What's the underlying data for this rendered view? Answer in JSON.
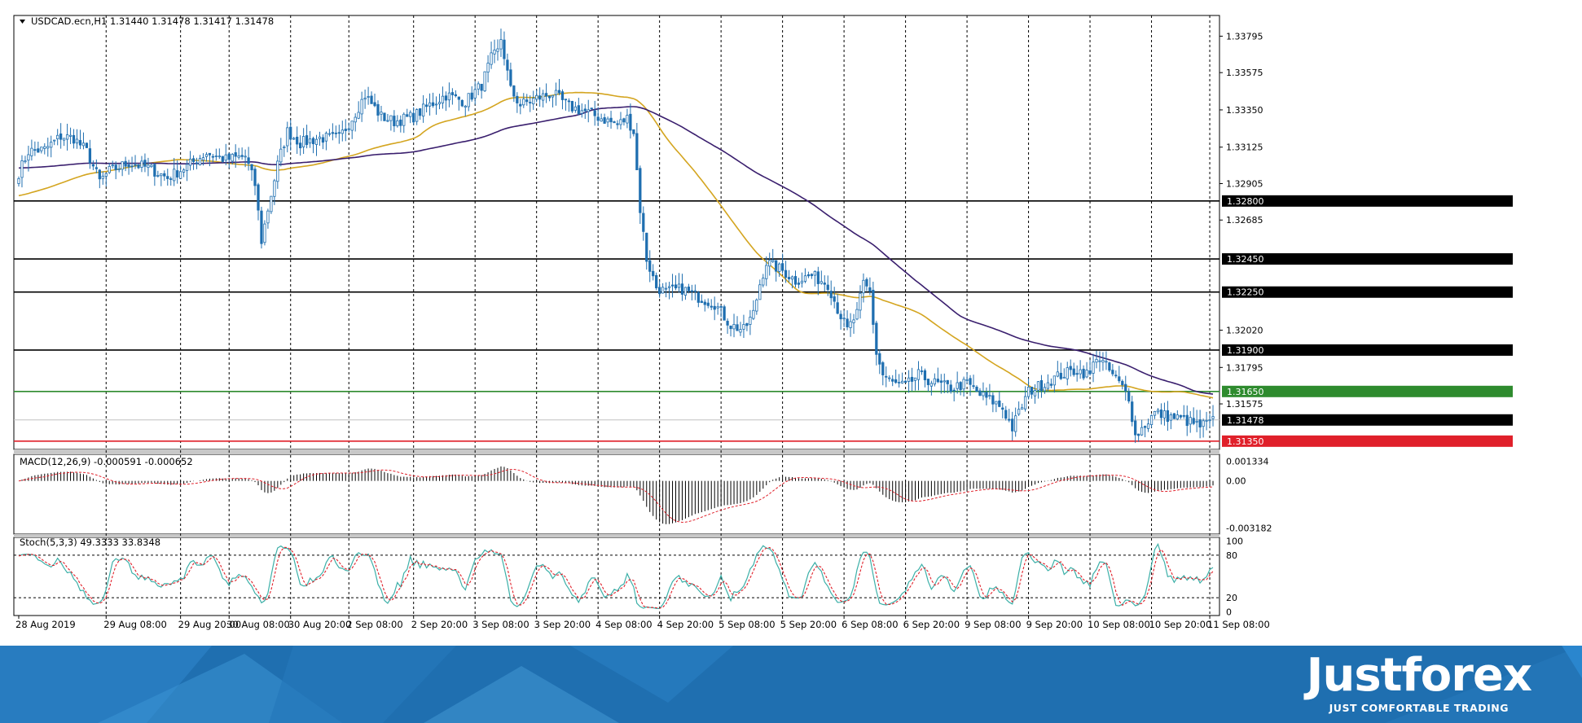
{
  "colors": {
    "bull": "#ffffff",
    "bear": "#1f6fb0",
    "candle_outline": "#1f6fb0",
    "ma_fast": "#d4a520",
    "ma_slow": "#3a1f6e",
    "level_line": "#000000",
    "support_green": "#2e8b2e",
    "support_red": "#e0202a",
    "macd_hist": "#000000",
    "macd_signal": "#e0202a",
    "stoch_main": "#3cb0a8",
    "stoch_signal": "#e0202a",
    "banner": "#1f6fb0"
  },
  "chart_data": [
    {
      "type": "candlestick",
      "header": "USDCAD.ecn,H1  1.31440 1.31478 1.31417 1.31478",
      "ylim": [
        1.313,
        1.3392
      ],
      "y_ticks": [
        "1.33795",
        "1.33575",
        "1.33350",
        "1.33125",
        "1.32905",
        "1.32685",
        "1.32020",
        "1.31795",
        "1.31575"
      ],
      "levels": [
        {
          "value": 1.328,
          "label": "1.32800",
          "kind": "resistance"
        },
        {
          "value": 1.3245,
          "label": "1.32450",
          "kind": "resistance"
        },
        {
          "value": 1.3225,
          "label": "1.32250",
          "kind": "resistance"
        },
        {
          "value": 1.319,
          "label": "1.31900",
          "kind": "resistance"
        },
        {
          "value": 1.3165,
          "label": "1.31650",
          "kind": "green"
        },
        {
          "value": 1.3135,
          "label": "1.31350",
          "kind": "red"
        }
      ],
      "current": {
        "value": 1.31478,
        "label": "1.31478"
      },
      "close_anchors": [
        [
          0,
          1.3297
        ],
        [
          3,
          1.331
        ],
        [
          8,
          1.3311
        ],
        [
          13,
          1.3319
        ],
        [
          17,
          1.3318
        ],
        [
          21,
          1.331
        ],
        [
          25,
          1.3292
        ],
        [
          28,
          1.3298
        ],
        [
          34,
          1.3303
        ],
        [
          40,
          1.33
        ],
        [
          46,
          1.3294
        ],
        [
          52,
          1.3301
        ],
        [
          58,
          1.3309
        ],
        [
          64,
          1.3305
        ],
        [
          70,
          1.3307
        ],
        [
          73,
          1.329
        ],
        [
          75,
          1.3256
        ],
        [
          77,
          1.3275
        ],
        [
          80,
          1.3302
        ],
        [
          83,
          1.3322
        ],
        [
          87,
          1.3315
        ],
        [
          93,
          1.3318
        ],
        [
          99,
          1.3318
        ],
        [
          103,
          1.333
        ],
        [
          107,
          1.3344
        ],
        [
          112,
          1.3331
        ],
        [
          116,
          1.3328
        ],
        [
          122,
          1.3331
        ],
        [
          127,
          1.3338
        ],
        [
          132,
          1.3344
        ],
        [
          138,
          1.334
        ],
        [
          143,
          1.335
        ],
        [
          146,
          1.3366
        ],
        [
          148,
          1.337
        ],
        [
          149,
          1.3378
        ],
        [
          152,
          1.3347
        ],
        [
          155,
          1.3338
        ],
        [
          160,
          1.3342
        ],
        [
          165,
          1.3345
        ],
        [
          170,
          1.3337
        ],
        [
          175,
          1.3334
        ],
        [
          180,
          1.333
        ],
        [
          185,
          1.3326
        ],
        [
          188,
          1.333
        ],
        [
          190,
          1.3322
        ],
        [
          192,
          1.3275
        ],
        [
          194,
          1.3245
        ],
        [
          197,
          1.3228
        ],
        [
          200,
          1.3225
        ],
        [
          205,
          1.3227
        ],
        [
          210,
          1.3222
        ],
        [
          215,
          1.3218
        ],
        [
          220,
          1.3205
        ],
        [
          224,
          1.3202
        ],
        [
          227,
          1.3212
        ],
        [
          229,
          1.323
        ],
        [
          231,
          1.3243
        ],
        [
          236,
          1.3238
        ],
        [
          240,
          1.3232
        ],
        [
          245,
          1.3235
        ],
        [
          250,
          1.323
        ],
        [
          253,
          1.3215
        ],
        [
          256,
          1.3202
        ],
        [
          259,
          1.3212
        ],
        [
          261,
          1.323
        ],
        [
          263,
          1.3225
        ],
        [
          265,
          1.3188
        ],
        [
          267,
          1.3175
        ],
        [
          270,
          1.317
        ],
        [
          274,
          1.3168
        ],
        [
          278,
          1.3175
        ],
        [
          283,
          1.317
        ],
        [
          288,
          1.3167
        ],
        [
          293,
          1.317
        ],
        [
          297,
          1.3163
        ],
        [
          301,
          1.3159
        ],
        [
          304,
          1.3155
        ],
        [
          307,
          1.3143
        ],
        [
          309,
          1.3152
        ],
        [
          312,
          1.3165
        ],
        [
          317,
          1.317
        ],
        [
          322,
          1.3175
        ],
        [
          327,
          1.3178
        ],
        [
          331,
          1.3175
        ],
        [
          333,
          1.3187
        ],
        [
          336,
          1.318
        ],
        [
          340,
          1.317
        ],
        [
          343,
          1.3162
        ],
        [
          345,
          1.3138
        ],
        [
          348,
          1.3145
        ],
        [
          351,
          1.3152
        ],
        [
          355,
          1.315
        ],
        [
          360,
          1.3148
        ],
        [
          365,
          1.3144
        ],
        [
          369,
          1.3147
        ]
      ]
    },
    {
      "type": "histogram",
      "header": "MACD(12,26,9) -0.000591 -0.000652",
      "ylim": [
        -0.0036,
        0.0018
      ],
      "y_ticks": [
        "0.001334",
        "0.00",
        "-0.003182"
      ]
    },
    {
      "type": "line",
      "header": "Stoch(5,3,3) 49.3333 33.8348",
      "ylim": [
        -5,
        105
      ],
      "y_ticks": [
        "100",
        "80",
        "20",
        "0"
      ],
      "levels": [
        80,
        20
      ]
    }
  ],
  "x_ticks": [
    {
      "i": 0,
      "label": "28 Aug 2019"
    },
    {
      "i": 27,
      "label": "29 Aug 08:00"
    },
    {
      "i": 50,
      "label": "29 Aug 20:00"
    },
    {
      "i": 65,
      "label": "30 Aug 08:00"
    },
    {
      "i": 84,
      "label": "30 Aug 20:00"
    },
    {
      "i": 102,
      "label": "2 Sep 08:00"
    },
    {
      "i": 122,
      "label": "2 Sep 20:00"
    },
    {
      "i": 141,
      "label": "3 Sep 08:00"
    },
    {
      "i": 160,
      "label": "3 Sep 20:00"
    },
    {
      "i": 179,
      "label": "4 Sep 08:00"
    },
    {
      "i": 198,
      "label": "4 Sep 20:00"
    },
    {
      "i": 217,
      "label": "5 Sep 08:00"
    },
    {
      "i": 236,
      "label": "5 Sep 20:00"
    },
    {
      "i": 255,
      "label": "6 Sep 08:00"
    },
    {
      "i": 274,
      "label": "6 Sep 20:00"
    },
    {
      "i": 293,
      "label": "9 Sep 08:00"
    },
    {
      "i": 312,
      "label": "9 Sep 20:00"
    },
    {
      "i": 331,
      "label": "10 Sep 08:00"
    },
    {
      "i": 350,
      "label": "10 Sep 20:00"
    },
    {
      "i": 368,
      "label": "11 Sep 08:00"
    }
  ],
  "brand": {
    "name": "Justforex",
    "tagline": "JUST COMFORTABLE TRADING"
  }
}
